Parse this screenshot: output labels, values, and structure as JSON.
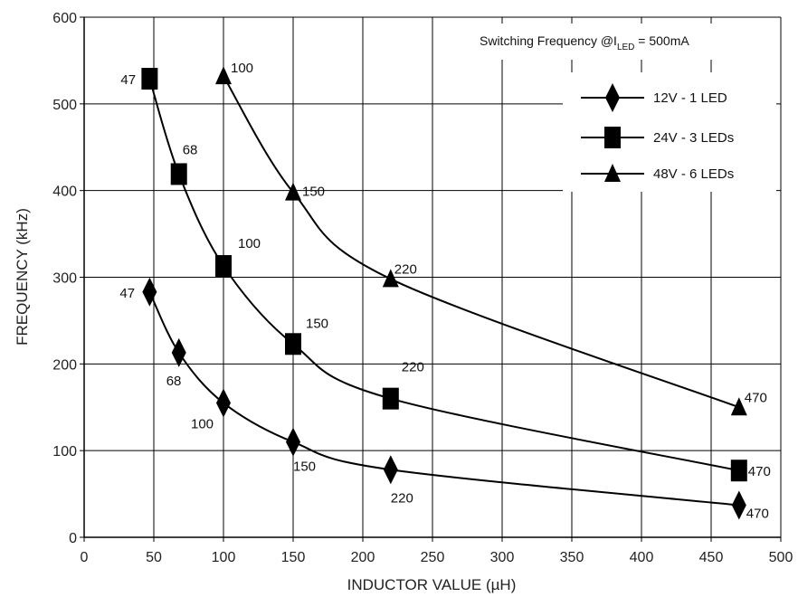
{
  "chart_data": {
    "type": "line",
    "title": "",
    "xlabel": "INDUCTOR VALUE (µH)",
    "ylabel": "FREQUENCY (kHz)",
    "xlim": [
      0,
      500
    ],
    "ylim": [
      0,
      600
    ],
    "x_ticks": [
      "0",
      "50",
      "100",
      "150",
      "200",
      "250",
      "300",
      "350",
      "400",
      "450",
      "500"
    ],
    "y_ticks": [
      "0",
      "100",
      "200",
      "300",
      "400",
      "500",
      "600"
    ],
    "grid": true,
    "legend_position": "top-right",
    "annotation": {
      "prefix": "Switching Frequency @I",
      "subscript": "LED",
      "suffix": " = 500mA"
    },
    "series": [
      {
        "name": "12V - 1 LED",
        "marker": "diamond",
        "x": [
          47,
          68,
          100,
          150,
          220,
          470
        ],
        "y": [
          283,
          213,
          155,
          110,
          78,
          37
        ],
        "point_labels": [
          "47",
          "68",
          "100",
          "150",
          "220",
          "470"
        ]
      },
      {
        "name": "24V - 3 LEDs",
        "marker": "square",
        "x": [
          47,
          68,
          100,
          150,
          220,
          470
        ],
        "y": [
          529,
          419,
          313,
          223,
          160,
          77
        ],
        "point_labels": [
          "47",
          "68",
          "100",
          "150",
          "220",
          "470"
        ]
      },
      {
        "name": "48V - 6 LEDs",
        "marker": "triangle",
        "x": [
          100,
          150,
          220,
          470
        ],
        "y": [
          532,
          398,
          298,
          150
        ],
        "point_labels": [
          "100",
          "150",
          "220",
          "470"
        ]
      }
    ]
  }
}
